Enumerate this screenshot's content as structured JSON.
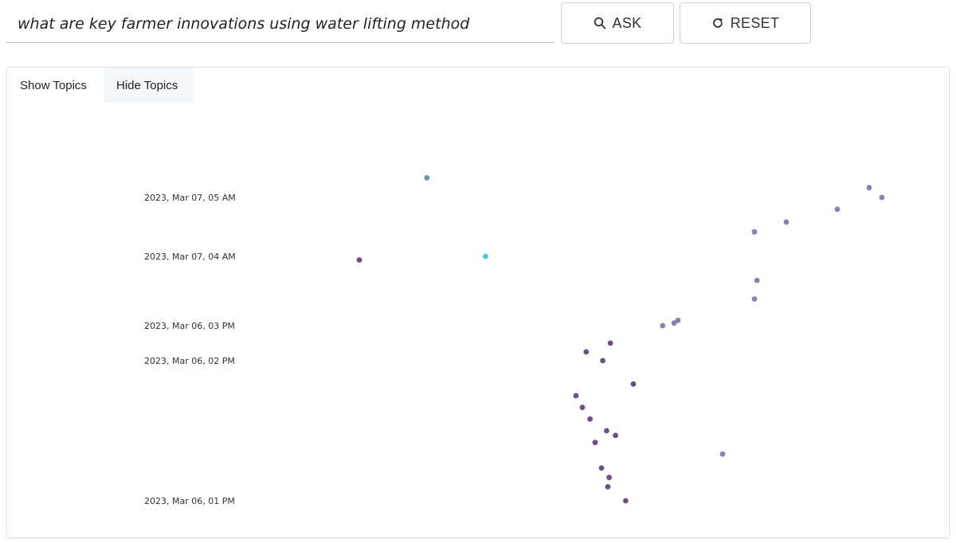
{
  "search": {
    "value": "what are key farmer innovations using water lifting method",
    "placeholder": ""
  },
  "buttons": {
    "ask_label": "ASK",
    "ask_icon": "search-icon",
    "reset_label": "RESET",
    "reset_icon": "refresh-icon"
  },
  "tabs": [
    {
      "label": "Show Topics",
      "active": false
    },
    {
      "label": "Hide Topics",
      "active": true
    }
  ],
  "chart_data": {
    "type": "scatter",
    "title": "",
    "xlabel": "",
    "ylabel": "",
    "grid": false,
    "legend": "none",
    "y_axis": "time",
    "tick_labels": [
      "2023, Mar 07, 05 AM",
      "2023, Mar 07, 04 AM",
      "2023, Mar 06, 03 PM",
      "2023, Mar 06, 02 PM",
      "2023, Mar 06, 01 PM"
    ],
    "colors": {
      "cyan": "#4fc4e0",
      "steel": "#6c94b3",
      "slate": "#7f86b6",
      "lavender": "#8c7eae",
      "purple": "#6e4d86"
    },
    "points": [
      {
        "x": 0.13,
        "y": "2023, Mar 07, 05:20 AM",
        "color": "steel"
      },
      {
        "x": 0.59,
        "y": "2023, Mar 07, 04:00 AM",
        "color": "cyan"
      },
      {
        "x": -0.4,
        "y": "2023, Mar 07, 03:20 AM",
        "color": "purple"
      },
      {
        "x": 3.6,
        "y": "2023, Mar 07, 05:10 AM",
        "color": "slate"
      },
      {
        "x": 3.7,
        "y": "2023, Mar 07, 05:00 AM",
        "color": "slate"
      },
      {
        "x": 3.35,
        "y": "2023, Mar 07, 04:48 AM",
        "color": "slate"
      },
      {
        "x": 2.95,
        "y": "2023, Mar 07, 04:35 AM",
        "color": "slate"
      },
      {
        "x": 2.7,
        "y": "2023, Mar 07, 04:25 AM",
        "color": "slate"
      },
      {
        "x": 2.72,
        "y": "2023, Mar 06, 11:30 PM",
        "color": "lavender"
      },
      {
        "x": 2.7,
        "y": "2023, Mar 06, 08:00 PM",
        "color": "lavender"
      },
      {
        "x": 2.1,
        "y": "2023, Mar 06, 04:00 PM",
        "color": "lavender"
      },
      {
        "x": 2.07,
        "y": "2023, Mar 06, 03:30 PM",
        "color": "lavender"
      },
      {
        "x": 1.98,
        "y": "2023, Mar 06, 03:00 PM",
        "color": "lavender"
      },
      {
        "x": 1.57,
        "y": "2023, Mar 06, 02:30 PM",
        "color": "purple"
      },
      {
        "x": 1.38,
        "y": "2023, Mar 06, 02:15 PM",
        "color": "purple"
      },
      {
        "x": 1.51,
        "y": "2023, Mar 06, 02:00 PM",
        "color": "purple"
      },
      {
        "x": 1.75,
        "y": "2023, Mar 06, 01:50 PM",
        "color": "purple"
      },
      {
        "x": 1.3,
        "y": "2023, Mar 06, 01:45 PM",
        "color": "purple"
      },
      {
        "x": 1.35,
        "y": "2023, Mar 06, 01:40 PM",
        "color": "purple"
      },
      {
        "x": 1.41,
        "y": "2023, Mar 06, 01:35 PM",
        "color": "purple"
      },
      {
        "x": 1.54,
        "y": "2023, Mar 06, 01:30 PM",
        "color": "purple"
      },
      {
        "x": 1.61,
        "y": "2023, Mar 06, 01:28 PM",
        "color": "purple"
      },
      {
        "x": 1.45,
        "y": "2023, Mar 06, 01:25 PM",
        "color": "purple"
      },
      {
        "x": 1.5,
        "y": "2023, Mar 06, 01:14 PM",
        "color": "purple"
      },
      {
        "x": 1.56,
        "y": "2023, Mar 06, 01:10 PM",
        "color": "purple"
      },
      {
        "x": 1.55,
        "y": "2023, Mar 06, 01:06 PM",
        "color": "purple"
      },
      {
        "x": 1.69,
        "y": "2023, Mar 06, 01:00 PM",
        "color": "purple"
      },
      {
        "x": 2.45,
        "y": "2023, Mar 06, 01:20 PM",
        "color": "slate"
      }
    ]
  }
}
